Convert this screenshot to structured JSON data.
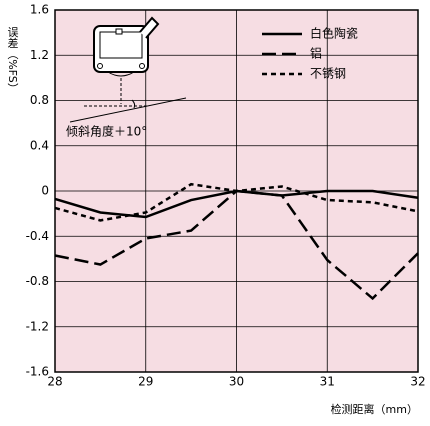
{
  "chart_data": {
    "type": "line",
    "y_label": "误差（%FS）",
    "x_label": "检测距离（mm）",
    "annotation": "倾斜角度＋10°",
    "x": [
      28,
      28.5,
      29,
      29.5,
      30,
      30.5,
      31,
      31.5,
      32
    ],
    "series": [
      {
        "name": "白色陶瓷",
        "color": "#000000",
        "dash": "solid",
        "values": [
          -0.07,
          -0.19,
          -0.23,
          -0.08,
          0,
          -0.04,
          0,
          0,
          -0.06
        ]
      },
      {
        "name": "铝",
        "color": "#000000",
        "dash": "long",
        "values": [
          -0.57,
          -0.65,
          -0.42,
          -0.35,
          0,
          -0.04,
          -0.61,
          -0.95,
          -0.55
        ]
      },
      {
        "name": "不锈钢",
        "color": "#000000",
        "dash": "short",
        "values": [
          -0.15,
          -0.26,
          -0.19,
          0.06,
          0,
          0.04,
          -0.08,
          -0.1,
          -0.18
        ]
      }
    ],
    "xlim": [
      28,
      32
    ],
    "xticks": [
      28,
      29,
      30,
      31,
      32
    ],
    "ylim": [
      -1.6,
      1.6
    ],
    "yticks": [
      1.6,
      1.2,
      0.8,
      0.4,
      0,
      -0.4,
      -0.8,
      -1.2,
      -1.6
    ],
    "grid": true,
    "background": "#f6dde3",
    "legend": "top-right"
  }
}
